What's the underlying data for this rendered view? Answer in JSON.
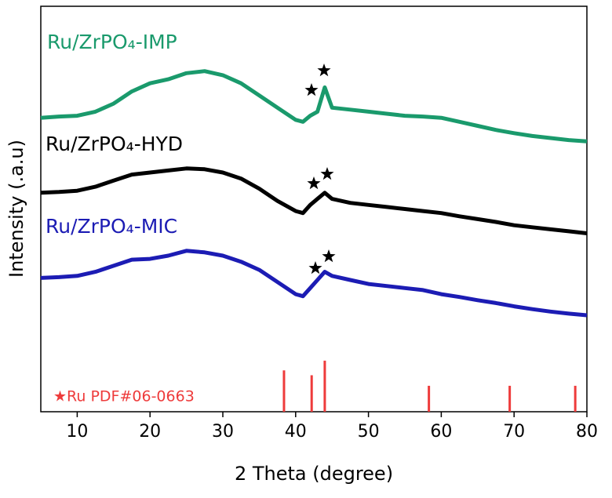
{
  "chart_data": {
    "type": "line",
    "xlabel": "2 Theta (degree)",
    "ylabel": "Intensity (.a.u)",
    "xlim": [
      5,
      80
    ],
    "xticks": [
      10,
      20,
      30,
      40,
      50,
      60,
      70,
      80
    ],
    "ylim": [
      0,
      100
    ],
    "x": [
      5,
      7.5,
      10,
      12.5,
      15,
      17.5,
      20,
      22.5,
      25,
      27.5,
      30,
      32.5,
      35,
      37.5,
      40,
      41,
      42,
      43,
      44,
      45,
      47.5,
      50,
      52.5,
      55,
      57.5,
      60,
      62.5,
      65,
      67.5,
      70,
      72.5,
      75,
      77.5,
      80
    ],
    "series": [
      {
        "name": "Ru/ZrPO₄-IMP",
        "color": "#1a9a6c",
        "values": [
          72.5,
          72.8,
          73,
          74,
          76,
          79,
          81,
          82,
          83.5,
          84,
          83,
          81,
          78,
          75,
          72,
          71.5,
          73,
          74,
          80,
          75,
          74.5,
          74,
          73.5,
          73,
          72.8,
          72.5,
          71.5,
          70.5,
          69.5,
          68.7,
          68,
          67.5,
          67,
          66.7
        ]
      },
      {
        "name": "Ru/ZrPO₄-HYD",
        "color": "#000000",
        "values": [
          54,
          54.2,
          54.5,
          55.5,
          57,
          58.5,
          59,
          59.5,
          60,
          59.8,
          59,
          57.5,
          55,
          52,
          49.5,
          49,
          51,
          52.5,
          54,
          52.5,
          51.5,
          51,
          50.5,
          50,
          49.5,
          49,
          48.2,
          47.5,
          46.8,
          46,
          45.5,
          45,
          44.5,
          44
        ]
      },
      {
        "name": "Ru/ZrPO₄-MIC",
        "color": "#1c1cb4",
        "values": [
          33,
          33.2,
          33.5,
          34.5,
          36,
          37.5,
          37.7,
          38.5,
          39.7,
          39.3,
          38.5,
          37,
          35,
          32,
          29,
          28.5,
          30.5,
          32.5,
          34.5,
          33.5,
          32.5,
          31.5,
          31,
          30.5,
          30,
          29,
          28.3,
          27.5,
          26.8,
          26,
          25.3,
          24.7,
          24.2,
          23.8
        ]
      }
    ],
    "reference": {
      "name": "★Ru PDF#06-0663",
      "color": "#ee3b3b",
      "x": [
        38.4,
        42.2,
        44.0,
        58.3,
        69.4,
        78.4
      ],
      "values": [
        10.2,
        9,
        12.6,
        6.4,
        6.4,
        6.4
      ]
    }
  }
}
